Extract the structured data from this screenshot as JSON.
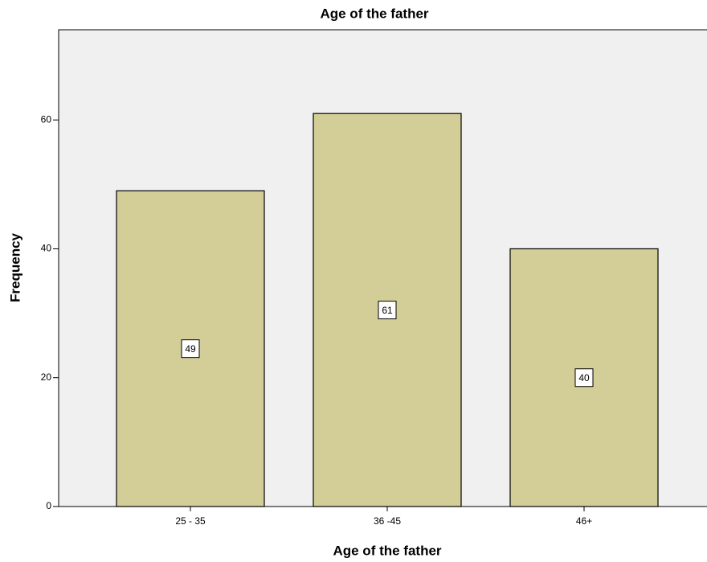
{
  "chart_data": {
    "type": "bar",
    "title": "Age of the father",
    "x_label": "Age of the father",
    "y_label": "Frequency",
    "categories": [
      "25 - 35",
      "36 -45",
      "46+"
    ],
    "values": [
      49,
      61,
      40
    ],
    "color": "#d3ce97",
    "ylim": [
      0,
      74
    ],
    "yticks": [
      0,
      20,
      40,
      60
    ],
    "grid": false
  }
}
